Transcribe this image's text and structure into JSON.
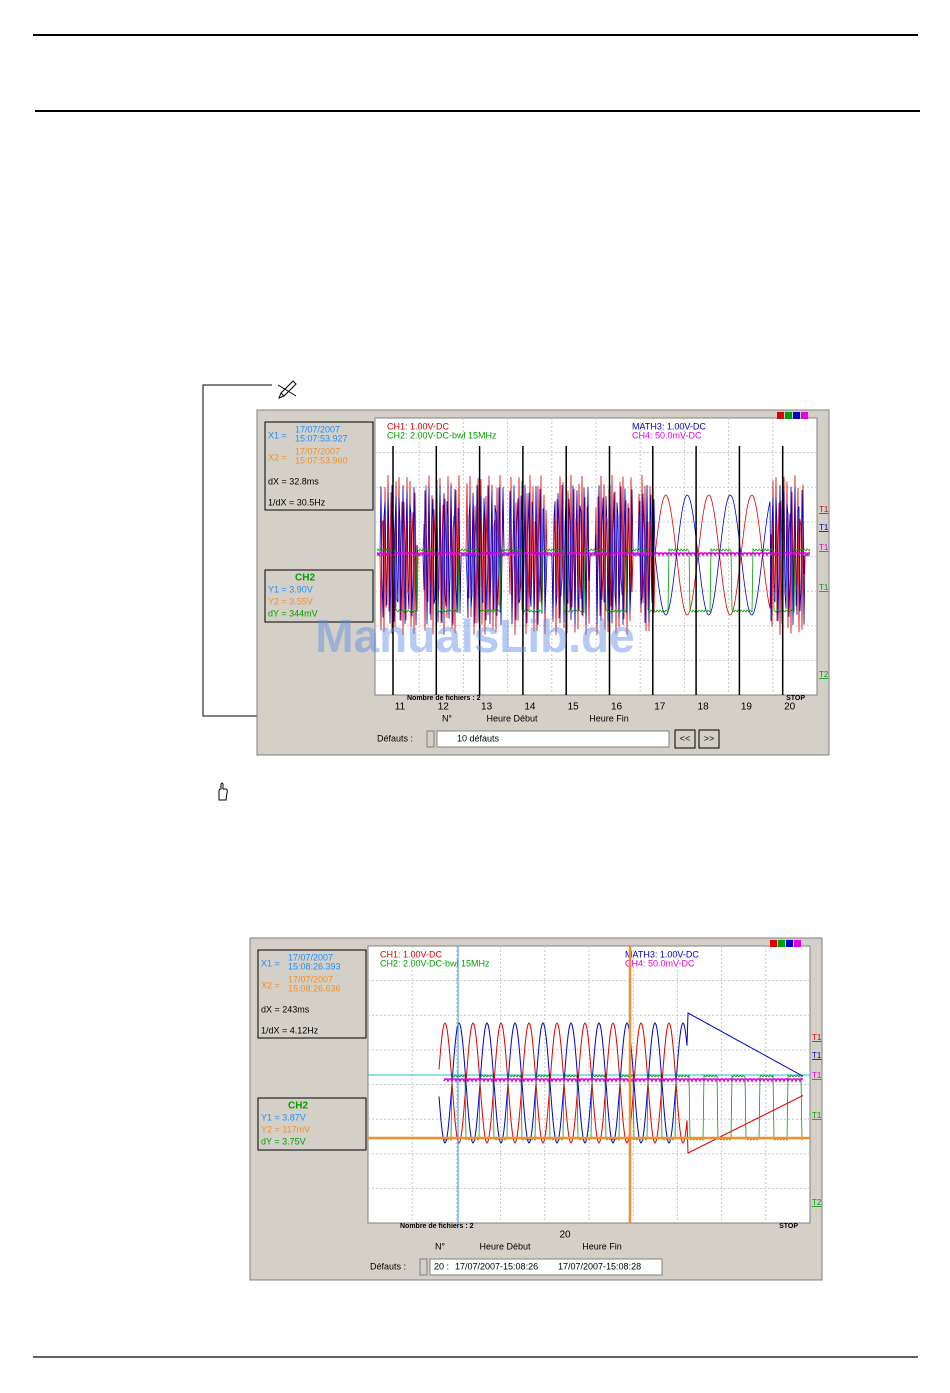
{
  "watermark": "ManualsLib.de",
  "screenshots": [
    {
      "x1_label": "X1 =",
      "x1_date": "17/07/2007",
      "x1_time": "15:07:53.927",
      "x2_label": "X2 =",
      "x2_date": "17/07/2007",
      "x2_time": "15:07:53.960",
      "dx": "dX = 32.8ms",
      "inv_dx": "1/dX = 30.5Hz",
      "channel": "CH2",
      "y1": "Y1 = 3.90V",
      "y2": "Y2 = 3.55V",
      "dy": "dY = 344mV",
      "ch1": "CH1: 1.00V-DC",
      "ch2": "CH2: 2.00V-DC-bwl 15MHz",
      "math3": "MATH3: 1.00V-DC",
      "ch4": "CH4: 50.0mV-DC",
      "trace_markers": [
        "T1",
        "T1",
        "T1",
        "T1",
        "T2"
      ],
      "files": "Nombre de fichiers : 2",
      "status": "STOP",
      "axis_labels": [
        "11",
        "12",
        "13",
        "14",
        "15",
        "16",
        "17",
        "18",
        "19",
        "20"
      ],
      "col_n": "N°",
      "col_start": "Heure Début",
      "col_end": "Heure Fin",
      "defauts_label": "Défauts :",
      "defauts_fields": [
        "10 défauts"
      ],
      "buttons": [
        "<<",
        ">>"
      ]
    },
    {
      "x1_label": "X1 =",
      "x1_date": "17/07/2007",
      "x1_time": "15:08:26.393",
      "x2_label": "X2 =",
      "x2_date": "17/07/2007",
      "x2_time": "15:08:26.636",
      "dx": "dX = 243ms",
      "inv_dx": "1/dX = 4.12Hz",
      "channel": "CH2",
      "y1": "Y1 = 3.87V",
      "y2": "Y2 = 117mV",
      "dy": "dY = 3.75V",
      "ch1": "CH1: 1.00V-DC",
      "ch2": "CH2: 2.00V-DC-bwl 15MHz",
      "math3": "MATH3: 1.00V-DC",
      "ch4": "CH4: 50.0mV-DC",
      "trace_markers": [
        "T1",
        "T1",
        "T1",
        "T1",
        "T2"
      ],
      "files": "Nombre de fichiers : 2",
      "status": "STOP",
      "axis_labels": [
        "20"
      ],
      "col_n": "N°",
      "col_start": "Heure Début",
      "col_end": "Heure Fin",
      "defauts_label": "Défauts :",
      "defauts_fields": [
        "20 :",
        "17/07/2007-15:08:26",
        "17/07/2007-15:08:28"
      ]
    }
  ]
}
